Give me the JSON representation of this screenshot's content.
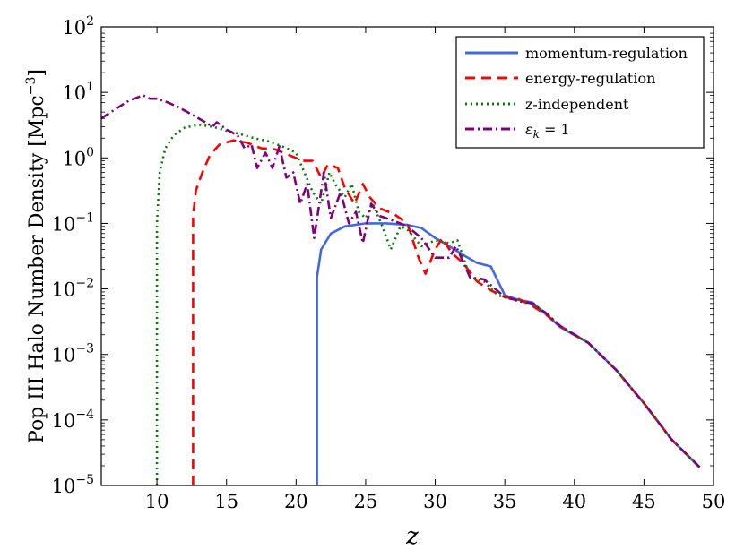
{
  "chart_data": {
    "type": "line",
    "xlabel": "z",
    "ylabel": "Pop III Halo Number Density [Mpc",
    "ylabel_unit_exp": "−3",
    "ylabel_close": "]",
    "xlim": [
      6,
      50
    ],
    "ylim": [
      1e-05,
      100
    ],
    "yscale": "log",
    "grid": false,
    "legend_position": "top-right",
    "x_ticks": [
      10,
      15,
      20,
      25,
      30,
      35,
      40,
      45,
      50
    ],
    "x_tick_labels": [
      "10",
      "15",
      "20",
      "25",
      "30",
      "35",
      "40",
      "45",
      "50"
    ],
    "y_ticks": [
      1e-05,
      0.0001,
      0.001,
      0.01,
      0.1,
      1,
      10,
      100
    ],
    "y_tick_labels": [
      {
        "base": "10",
        "exp": "−5"
      },
      {
        "base": "10",
        "exp": "−4"
      },
      {
        "base": "10",
        "exp": "−3"
      },
      {
        "base": "10",
        "exp": "−2"
      },
      {
        "base": "10",
        "exp": "−1"
      },
      {
        "base": "10",
        "exp": "0"
      },
      {
        "base": "10",
        "exp": "1"
      },
      {
        "base": "10",
        "exp": "2"
      }
    ],
    "series": [
      {
        "name": "momentum-regulation",
        "color": "#4169e1",
        "style": "solid",
        "points": [
          [
            21.5,
            1e-05
          ],
          [
            21.5,
            0.015
          ],
          [
            21.8,
            0.04
          ],
          [
            22.5,
            0.07
          ],
          [
            23.5,
            0.09
          ],
          [
            25,
            0.1
          ],
          [
            26.5,
            0.1
          ],
          [
            28,
            0.095
          ],
          [
            29,
            0.085
          ],
          [
            30,
            0.06
          ],
          [
            31,
            0.045
          ],
          [
            32,
            0.033
          ],
          [
            33,
            0.025
          ],
          [
            34,
            0.022
          ],
          [
            35,
            0.008
          ],
          [
            36,
            0.0068
          ],
          [
            37,
            0.0062
          ],
          [
            38,
            0.004
          ],
          [
            39,
            0.0026
          ],
          [
            41,
            0.0015
          ],
          [
            43,
            0.00058
          ],
          [
            45,
            0.00018
          ],
          [
            47,
            5e-05
          ],
          [
            49,
            1.9e-05
          ]
        ]
      },
      {
        "name": "energy-regulation",
        "color": "#ff0000",
        "style": "dashed",
        "points": [
          [
            12.6,
            1e-05
          ],
          [
            12.6,
            0.13
          ],
          [
            12.8,
            0.32
          ],
          [
            13.2,
            0.55
          ],
          [
            13.8,
            1.1
          ],
          [
            14.5,
            1.6
          ],
          [
            15.5,
            1.85
          ],
          [
            16.5,
            1.7
          ],
          [
            17.5,
            1.4
          ],
          [
            18.5,
            1.35
          ],
          [
            19.5,
            1.1
          ],
          [
            20.5,
            0.9
          ],
          [
            21.2,
            0.9
          ],
          [
            21.8,
            0.5
          ],
          [
            22.3,
            0.8
          ],
          [
            23,
            0.7
          ],
          [
            23.5,
            0.35
          ],
          [
            24.2,
            0.2
          ],
          [
            24.8,
            0.4
          ],
          [
            25.3,
            0.25
          ],
          [
            26,
            0.17
          ],
          [
            27,
            0.14
          ],
          [
            28,
            0.1
          ],
          [
            28.8,
            0.03
          ],
          [
            29.3,
            0.017
          ],
          [
            30,
            0.04
          ],
          [
            30.5,
            0.06
          ],
          [
            31.2,
            0.035
          ],
          [
            32,
            0.025
          ],
          [
            33,
            0.013
          ],
          [
            34,
            0.0095
          ],
          [
            35,
            0.0075
          ],
          [
            36,
            0.007
          ],
          [
            37,
            0.0055
          ],
          [
            38,
            0.004
          ],
          [
            39,
            0.0027
          ],
          [
            41,
            0.0015
          ],
          [
            43,
            0.00058
          ],
          [
            45,
            0.00018
          ],
          [
            47,
            5e-05
          ],
          [
            49,
            1.9e-05
          ]
        ]
      },
      {
        "name": "z-independent",
        "color": "#008000",
        "style": "dotted",
        "points": [
          [
            10,
            1e-05
          ],
          [
            10,
            0.1
          ],
          [
            10.2,
            0.6
          ],
          [
            10.6,
            1.4
          ],
          [
            11.2,
            2.2
          ],
          [
            12,
            2.9
          ],
          [
            13,
            3.2
          ],
          [
            14,
            3
          ],
          [
            15,
            2.6
          ],
          [
            16,
            2.3
          ],
          [
            17,
            2
          ],
          [
            18,
            1.8
          ],
          [
            19,
            1.5
          ],
          [
            20,
            1.2
          ],
          [
            20.6,
            0.6
          ],
          [
            21.2,
            0.3
          ],
          [
            21.8,
            0.2
          ],
          [
            22.4,
            0.6
          ],
          [
            22.8,
            0.4
          ],
          [
            23.5,
            0.25
          ],
          [
            24,
            0.4
          ],
          [
            24.5,
            0.15
          ],
          [
            25,
            0.12
          ],
          [
            25.5,
            0.2
          ],
          [
            26.2,
            0.09
          ],
          [
            26.8,
            0.04
          ],
          [
            27.5,
            0.09
          ],
          [
            28,
            0.08
          ],
          [
            29,
            0.045
          ],
          [
            30,
            0.055
          ],
          [
            31,
            0.05
          ],
          [
            31.6,
            0.055
          ],
          [
            32.5,
            0.015
          ],
          [
            33.5,
            0.013
          ],
          [
            34.5,
            0.008
          ],
          [
            36,
            0.0065
          ],
          [
            37,
            0.006
          ],
          [
            38,
            0.0042
          ],
          [
            39,
            0.0027
          ],
          [
            41,
            0.0015
          ],
          [
            43,
            0.00058
          ],
          [
            45,
            0.00018
          ],
          [
            47,
            5e-05
          ],
          [
            49,
            1.9e-05
          ]
        ]
      },
      {
        "name": "ε_k = 1",
        "color": "#800080",
        "style": "dashdot",
        "points": [
          [
            6,
            4
          ],
          [
            7,
            5.5
          ],
          [
            8,
            7.5
          ],
          [
            9,
            9
          ],
          [
            9.5,
            8
          ],
          [
            10,
            8
          ],
          [
            10.8,
            7
          ],
          [
            11.5,
            6
          ],
          [
            12.2,
            5
          ],
          [
            13,
            4
          ],
          [
            14,
            3
          ],
          [
            14.3,
            3.5
          ],
          [
            15,
            2.7
          ],
          [
            15.8,
            2.2
          ],
          [
            16.3,
            1.4
          ],
          [
            16.8,
            1.6
          ],
          [
            17.2,
            0.7
          ],
          [
            17.8,
            1.2
          ],
          [
            18.3,
            0.7
          ],
          [
            18.8,
            1.5
          ],
          [
            19.3,
            0.5
          ],
          [
            19.8,
            0.6
          ],
          [
            20.3,
            0.2
          ],
          [
            20.8,
            0.4
          ],
          [
            21.3,
            0.06
          ],
          [
            22,
            0.6
          ],
          [
            22.5,
            0.12
          ],
          [
            23.2,
            0.3
          ],
          [
            23.8,
            0.1
          ],
          [
            24.3,
            0.15
          ],
          [
            24.8,
            0.05
          ],
          [
            25.4,
            0.2
          ],
          [
            26,
            0.13
          ],
          [
            27,
            0.11
          ],
          [
            28,
            0.09
          ],
          [
            29,
            0.06
          ],
          [
            30,
            0.03
          ],
          [
            31,
            0.03
          ],
          [
            31.5,
            0.045
          ],
          [
            32.5,
            0.015
          ],
          [
            33.5,
            0.014
          ],
          [
            35,
            0.0075
          ],
          [
            36,
            0.0066
          ],
          [
            37,
            0.006
          ],
          [
            38,
            0.0042
          ],
          [
            39,
            0.0027
          ],
          [
            41,
            0.0015
          ],
          [
            43,
            0.00058
          ],
          [
            45,
            0.00018
          ],
          [
            47,
            5e-05
          ],
          [
            49,
            1.9e-05
          ]
        ]
      }
    ],
    "legend": [
      {
        "label": "momentum-regulation"
      },
      {
        "label": "energy-regulation"
      },
      {
        "label": "z-independent"
      },
      {
        "label_main": "ε",
        "label_sub": "k",
        "label_rest": " = 1"
      }
    ]
  }
}
